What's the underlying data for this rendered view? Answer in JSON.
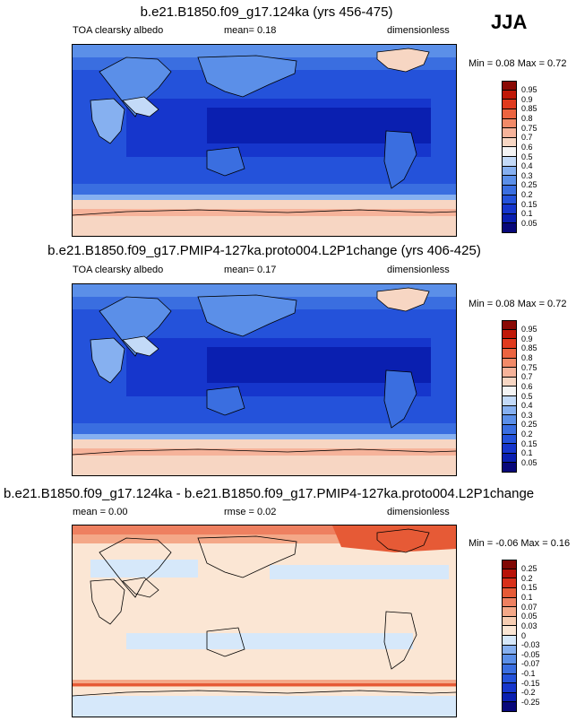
{
  "season": "JJA",
  "panels": [
    {
      "title": "b.e21.B1850.f09_g17.124ka (yrs 456-475)",
      "left_label": "TOA clearsky albedo",
      "center_label": "mean=  0.18",
      "right_label": "dimensionless",
      "minmax": "Min =  0.08 Max =  0.72"
    },
    {
      "title": "b.e21.B1850.f09_g17.PMIP4-127ka.proto004.L2P1change (yrs 406-425)",
      "left_label": "TOA clearsky albedo",
      "center_label": "mean=  0.17",
      "right_label": "dimensionless",
      "minmax": "Min =  0.08 Max =  0.72"
    },
    {
      "title": "b.e21.B1850.f09_g17.124ka - b.e21.B1850.f09_g17.PMIP4-127ka.proto004.L2P1change",
      "left_label": "mean =  0.00",
      "center_label": "rmse =  0.02",
      "right_label": "dimensionless",
      "minmax": "Min =  -0.06 Max =  0.16"
    }
  ],
  "chart_data": [
    {
      "type": "heatmap",
      "title": "b.e21.B1850.f09_g17.124ka (yrs 456-475)",
      "variable": "TOA clearsky albedo",
      "units": "dimensionless",
      "mean": 0.18,
      "min": 0.08,
      "max": 0.72,
      "colorbar_levels": [
        "0.05",
        "0.1",
        "0.15",
        "0.2",
        "0.25",
        "0.3",
        "0.4",
        "0.5",
        "0.6",
        "0.7",
        "0.75",
        "0.8",
        "0.85",
        "0.9",
        "0.95"
      ],
      "colorbar_colors": [
        "#08087a",
        "#0a1fb0",
        "#1636cc",
        "#2452da",
        "#3a6ee0",
        "#5b8fe8",
        "#86b0f0",
        "#c3daf8",
        "#f4f4f4",
        "#f7d6c3",
        "#f6b39a",
        "#f28a68",
        "#ec6440",
        "#e03a1e",
        "#c01808",
        "#8a0a05"
      ]
    },
    {
      "type": "heatmap",
      "title": "b.e21.B1850.f09_g17.PMIP4-127ka.proto004.L2P1change (yrs 406-425)",
      "variable": "TOA clearsky albedo",
      "units": "dimensionless",
      "mean": 0.17,
      "min": 0.08,
      "max": 0.72,
      "colorbar_levels": [
        "0.05",
        "0.1",
        "0.15",
        "0.2",
        "0.25",
        "0.3",
        "0.4",
        "0.5",
        "0.6",
        "0.7",
        "0.75",
        "0.8",
        "0.85",
        "0.9",
        "0.95"
      ],
      "colorbar_colors": [
        "#08087a",
        "#0a1fb0",
        "#1636cc",
        "#2452da",
        "#3a6ee0",
        "#5b8fe8",
        "#86b0f0",
        "#c3daf8",
        "#f4f4f4",
        "#f7d6c3",
        "#f6b39a",
        "#f28a68",
        "#ec6440",
        "#e03a1e",
        "#c01808",
        "#8a0a05"
      ]
    },
    {
      "type": "heatmap",
      "title": "b.e21.B1850.f09_g17.124ka - b.e21.B1850.f09_g17.PMIP4-127ka.proto004.L2P1change",
      "units": "dimensionless",
      "mean": 0.0,
      "rmse": 0.02,
      "min": -0.06,
      "max": 0.16,
      "colorbar_levels": [
        "-0.25",
        "-0.2",
        "-0.15",
        "-0.1",
        "-0.07",
        "-0.05",
        "-0.03",
        "0",
        "0.03",
        "0.05",
        "0.07",
        "0.1",
        "0.15",
        "0.2",
        "0.25"
      ],
      "colorbar_colors": [
        "#08087a",
        "#0a1fb0",
        "#1636cc",
        "#2452da",
        "#3a6ee0",
        "#5b8fe8",
        "#86b0f0",
        "#d6e8fa",
        "#fbe6d4",
        "#f7cdb2",
        "#f4a888",
        "#ee8060",
        "#e65a36",
        "#d8301a",
        "#b81208",
        "#800804"
      ]
    }
  ]
}
